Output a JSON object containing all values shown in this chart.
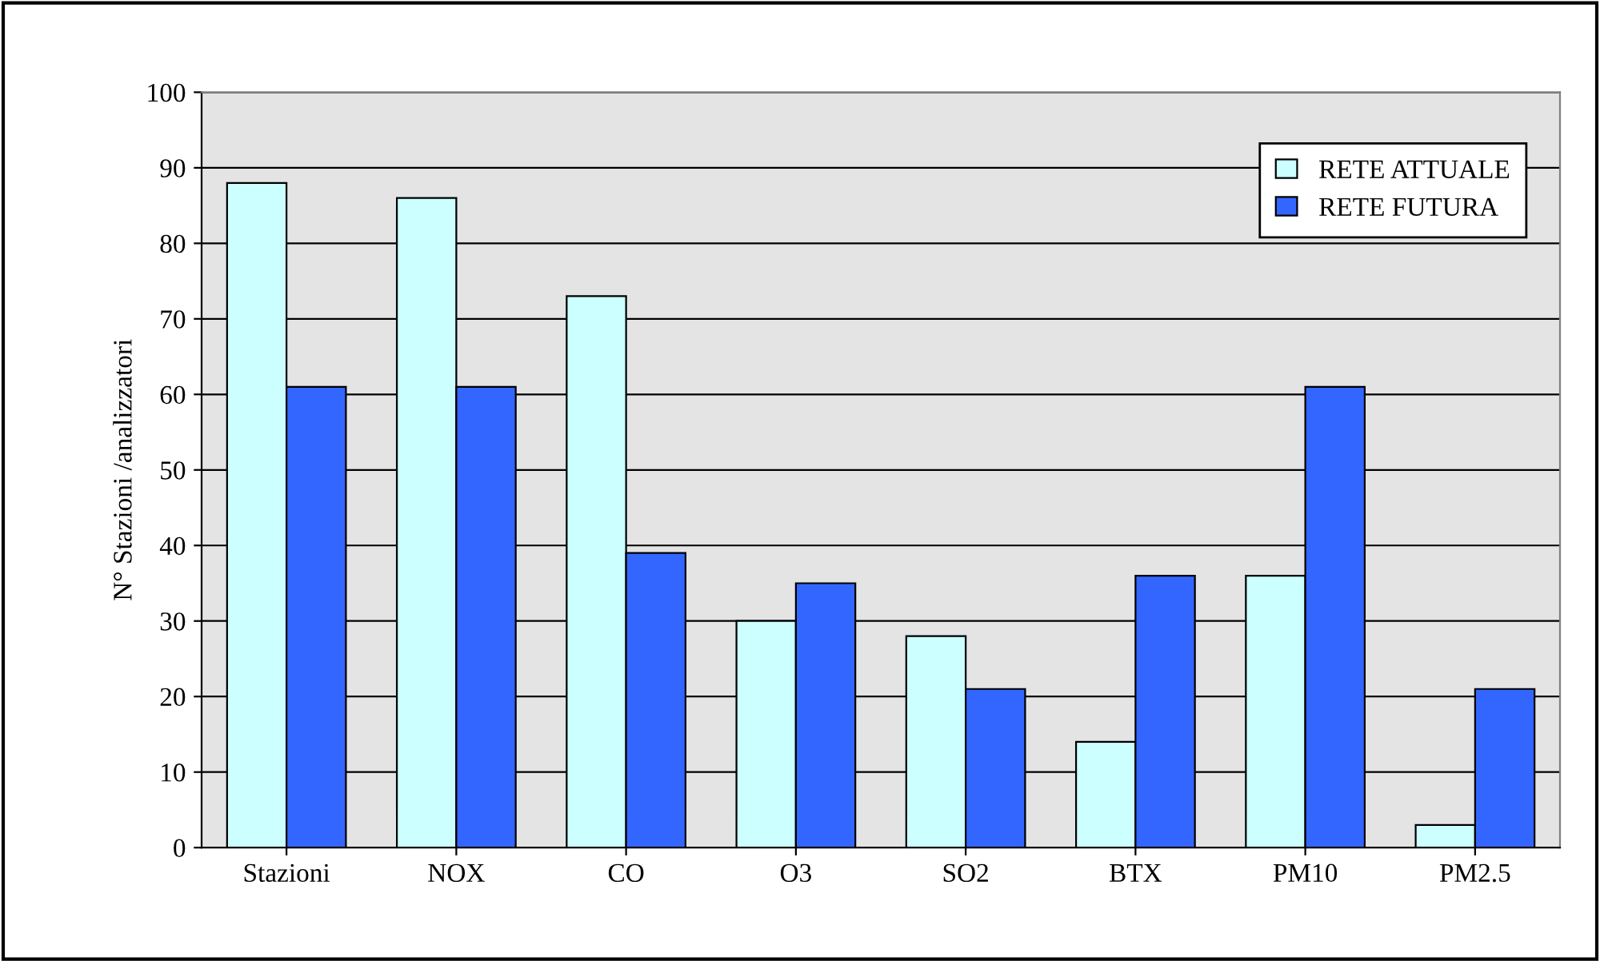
{
  "chart_data": {
    "type": "bar",
    "ylabel": "N° Stazioni /analizzatori",
    "categories": [
      "Stazioni",
      "NOX",
      "CO",
      "O3",
      "SO2",
      "BTX",
      "PM10",
      "PM2.5"
    ],
    "series": [
      {
        "name": "RETE ATTUALE",
        "color": "#ccffff",
        "values": [
          88,
          86,
          73,
          30,
          28,
          14,
          36,
          3
        ]
      },
      {
        "name": "RETE FUTURA",
        "color": "#3366ff",
        "values": [
          61,
          61,
          39,
          35,
          21,
          36,
          61,
          21
        ]
      }
    ],
    "ylim": [
      0,
      100
    ],
    "yticks": [
      0,
      10,
      20,
      30,
      40,
      50,
      60,
      70,
      80,
      90,
      100
    ],
    "grid": "y",
    "legend": "top right"
  }
}
